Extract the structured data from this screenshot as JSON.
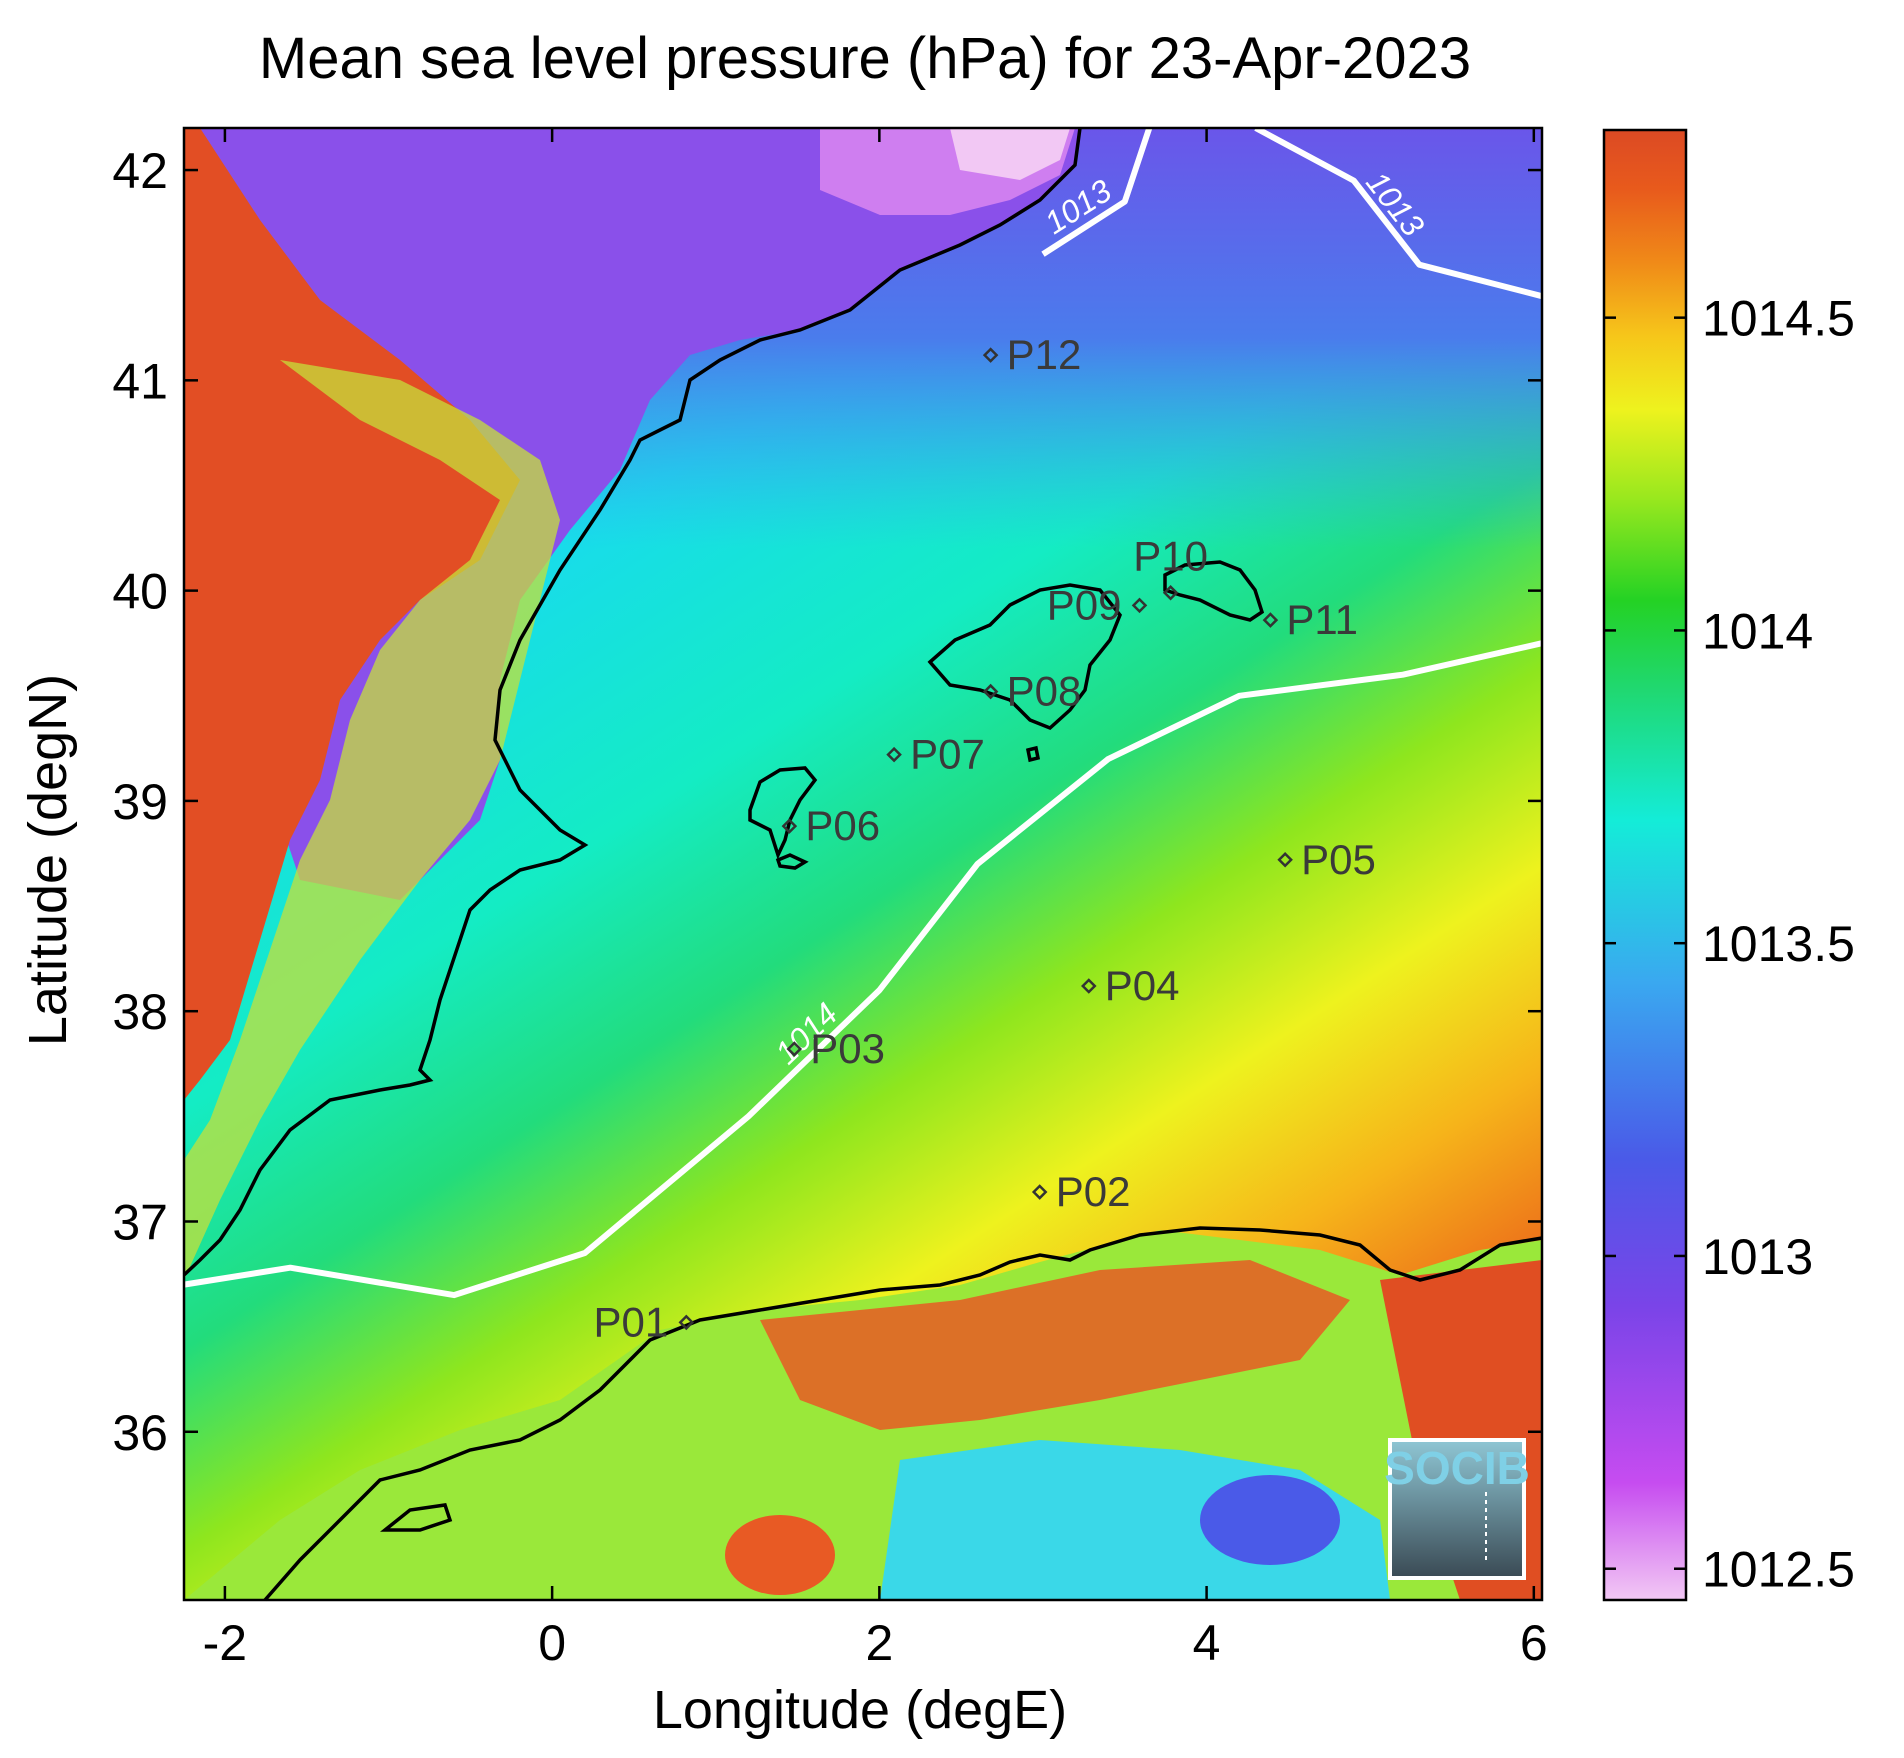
{
  "chart_data": {
    "type": "heatmap",
    "title": "Mean sea level pressure (hPa) for 23-Apr-2023",
    "xlabel": "Longitude (degE)",
    "ylabel": "Latitude (degN)",
    "xlim": [
      -2.25,
      6.05
    ],
    "ylim": [
      35.2,
      42.2
    ],
    "xticks": [
      -2,
      0,
      2,
      4,
      6
    ],
    "yticks": [
      36,
      37,
      38,
      39,
      40,
      41,
      42
    ],
    "xtick_labels": [
      "-2",
      "0",
      "2",
      "4",
      "6"
    ],
    "ytick_labels": [
      "36",
      "37",
      "38",
      "39",
      "40",
      "41",
      "42"
    ],
    "colorbar": {
      "range": [
        1012.45,
        1014.8
      ],
      "ticks": [
        1012.5,
        1013,
        1013.5,
        1014,
        1014.5
      ],
      "tick_labels": [
        "1012.5",
        "1013",
        "1013.5",
        "1014",
        "1014.5"
      ],
      "colors": [
        "#f2c8f4",
        "#c64cf0",
        "#7a44e8",
        "#4a5ae8",
        "#3aa8f0",
        "#14ecd8",
        "#20d870",
        "#24d224",
        "#9ae81e",
        "#eef21e",
        "#f6c61a",
        "#f08a18",
        "#e85a1c",
        "#dc4a24"
      ]
    },
    "contours": [
      {
        "label": "1014",
        "points": [
          [
            -2.25,
            36.7
          ],
          [
            -1.6,
            36.78
          ],
          [
            -0.6,
            36.65
          ],
          [
            0.2,
            36.85
          ],
          [
            1.2,
            37.5
          ],
          [
            2.0,
            38.1
          ],
          [
            2.6,
            38.7
          ],
          [
            3.4,
            39.2
          ],
          [
            4.2,
            39.5
          ],
          [
            5.2,
            39.6
          ],
          [
            6.05,
            39.75
          ]
        ]
      },
      {
        "label": "1013",
        "points": [
          [
            3.0,
            41.6
          ],
          [
            3.5,
            41.85
          ],
          [
            3.65,
            42.2
          ]
        ]
      },
      {
        "label": "1013",
        "points": [
          [
            4.3,
            42.2
          ],
          [
            4.9,
            41.95
          ],
          [
            5.3,
            41.55
          ],
          [
            6.05,
            41.4
          ]
        ]
      }
    ],
    "points": [
      {
        "name": "P01",
        "lon": 0.82,
        "lat": 36.52
      },
      {
        "name": "P02",
        "lon": 2.98,
        "lat": 37.14
      },
      {
        "name": "P03",
        "lon": 1.48,
        "lat": 37.82
      },
      {
        "name": "P04",
        "lon": 3.28,
        "lat": 38.12
      },
      {
        "name": "P05",
        "lon": 4.48,
        "lat": 38.72
      },
      {
        "name": "P06",
        "lon": 1.45,
        "lat": 38.88
      },
      {
        "name": "P07",
        "lon": 2.09,
        "lat": 39.22
      },
      {
        "name": "P08",
        "lon": 2.68,
        "lat": 39.52
      },
      {
        "name": "P09",
        "lon": 3.59,
        "lat": 39.93
      },
      {
        "name": "P10",
        "lon": 3.78,
        "lat": 39.99
      },
      {
        "name": "P11",
        "lon": 4.39,
        "lat": 39.86
      },
      {
        "name": "P12",
        "lon": 2.68,
        "lat": 41.12
      }
    ]
  },
  "logo": {
    "text": "SOCIB"
  }
}
